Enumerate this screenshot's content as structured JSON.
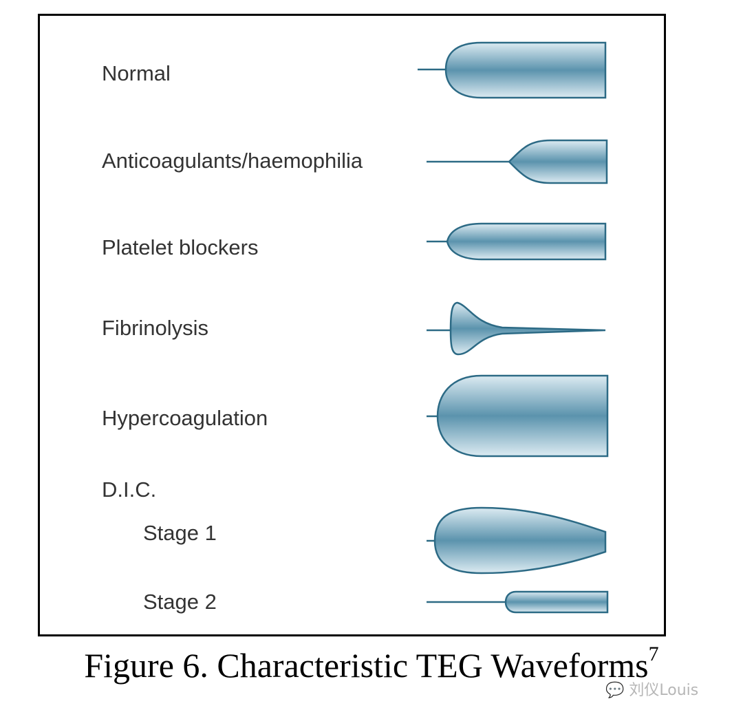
{
  "labels": {
    "normal": "Normal",
    "anticoagulants": "Anticoagulants/haemophilia",
    "platelet": "Platelet blockers",
    "fibrinolysis": "Fibrinolysis",
    "hypercoagulation": "Hypercoagulation",
    "dic": "D.I.C.",
    "stage1": "Stage 1",
    "stage2": "Stage 2"
  },
  "caption": {
    "text": "Figure 6. Characteristic TEG Waveforms",
    "superscript": "7"
  },
  "watermark": "刘仪Louis",
  "colors": {
    "waveform_fill_center": "#5b93ad",
    "waveform_fill_edge": "#dcebf2",
    "waveform_stroke": "#2c6a85"
  }
}
